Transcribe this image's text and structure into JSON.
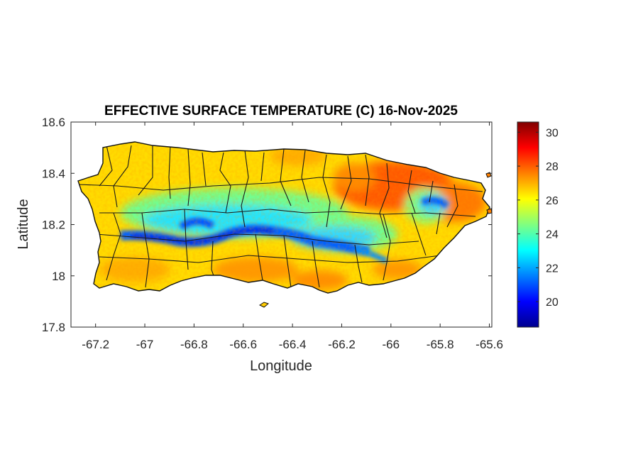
{
  "chart_data": {
    "type": "heatmap",
    "title": "EFFECTIVE SURFACE TEMPERATURE (C) 16-Nov-2025",
    "xlabel": "Longitude",
    "ylabel": "Latitude",
    "xlim": [
      -67.3,
      -65.59
    ],
    "ylim": [
      17.8,
      18.6
    ],
    "xticks": [
      -67.2,
      -67,
      -66.8,
      -66.6,
      -66.4,
      -66.2,
      -66,
      -65.8,
      -65.6
    ],
    "xtick_labels": [
      "-67.2",
      "-67",
      "-66.8",
      "-66.6",
      "-66.4",
      "-66.2",
      "-66",
      "-65.8",
      "-65.6"
    ],
    "yticks": [
      17.8,
      18,
      18.2,
      18.4,
      18.6
    ],
    "ytick_labels": [
      "17.8",
      "18",
      "18.2",
      "18.4",
      "18.6"
    ],
    "colorbar": {
      "range": [
        18.5,
        30.6
      ],
      "ticks": [
        20,
        22,
        24,
        26,
        28,
        30
      ],
      "tick_labels": [
        "20",
        "22",
        "24",
        "26",
        "28",
        "30"
      ],
      "colormap": "jet",
      "colors": [
        "#00008f",
        "#0000ff",
        "#0080ff",
        "#00ffff",
        "#80ff80",
        "#ffff00",
        "#ff8000",
        "#ff0000",
        "#800000"
      ]
    },
    "grid": false,
    "region": "Puerto Rico",
    "field_summary": {
      "coastal_lowlands": 26.5,
      "north_east_coast": 27.5,
      "central_mountains": 21,
      "cordillera_peak": 19.5
    }
  }
}
